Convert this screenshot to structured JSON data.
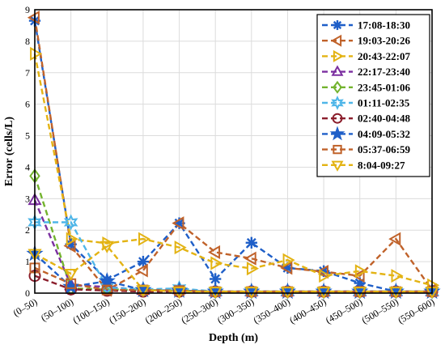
{
  "chart_data": {
    "type": "line",
    "xlabel": "Depth (m)",
    "ylabel": "Error (cells/L)",
    "categories": [
      "(0–50)",
      "(50–100)",
      "(100–150)",
      "(150–200)",
      "(200–250)",
      "(250–300)",
      "(300–350)",
      "(350–400)",
      "(400–450)",
      "(450–500)",
      "(500–550)",
      "(550–600)"
    ],
    "ylim": [
      0,
      9
    ],
    "yticks": [
      0,
      1,
      2,
      3,
      4,
      5,
      6,
      7,
      8,
      9
    ],
    "grid": true,
    "legend_position": "top-right",
    "series": [
      {
        "name": "17:08-18:30",
        "color": "#1f5fc8",
        "marker": "asterisk",
        "values": [
          8.65,
          1.55,
          0.42,
          1.0,
          2.22,
          0.45,
          1.6,
          0.8,
          0.7,
          0.32,
          0.05,
          0.05
        ]
      },
      {
        "name": "19:03-20:26",
        "color": "#c0622a",
        "marker": "tri-left",
        "values": [
          8.75,
          1.5,
          0.1,
          0.72,
          2.22,
          1.3,
          1.1,
          0.8,
          0.68,
          0.55,
          1.72,
          0.1
        ]
      },
      {
        "name": "20:43-22:07",
        "color": "#e3b313",
        "marker": "tri-right",
        "values": [
          7.6,
          1.72,
          1.58,
          1.72,
          1.45,
          0.95,
          0.78,
          1.05,
          0.55,
          0.7,
          0.55,
          0.25
        ]
      },
      {
        "name": "22:17-23:40",
        "color": "#7b2fa0",
        "marker": "tri-up",
        "values": [
          2.95,
          0.25,
          0.2,
          0.1,
          0.12,
          0.05,
          0.05,
          0.05,
          0.05,
          0.05,
          0.05,
          0.05
        ]
      },
      {
        "name": "23:45-01:06",
        "color": "#73b32e",
        "marker": "diamond",
        "values": [
          3.72,
          0.15,
          0.12,
          0.1,
          0.08,
          0.05,
          0.05,
          0.05,
          0.05,
          0.05,
          0.05,
          0.05
        ]
      },
      {
        "name": "01:11-02:35",
        "color": "#4fb6e8",
        "marker": "hexagram",
        "values": [
          2.25,
          2.25,
          0.18,
          0.12,
          0.15,
          0.05,
          0.05,
          0.05,
          0.05,
          0.05,
          0.05,
          0.05
        ]
      },
      {
        "name": "02:40-04:48",
        "color": "#8b1e2c",
        "marker": "circle",
        "values": [
          0.55,
          0.12,
          0.08,
          0.05,
          0.05,
          0.05,
          0.05,
          0.05,
          0.05,
          0.05,
          0.05,
          0.05
        ]
      },
      {
        "name": "04:09-05:32",
        "color": "#1f5fc8",
        "marker": "star",
        "values": [
          1.25,
          0.2,
          0.38,
          0.1,
          0.08,
          0.05,
          0.05,
          0.05,
          0.05,
          0.05,
          0.05,
          0.05
        ]
      },
      {
        "name": "05:37-06:59",
        "color": "#c0622a",
        "marker": "square",
        "values": [
          0.8,
          0.3,
          0.1,
          0.1,
          0.08,
          0.05,
          0.05,
          0.05,
          0.05,
          0.05,
          0.05,
          0.05
        ]
      },
      {
        "name": "8:04-09:27",
        "color": "#e3b313",
        "marker": "tri-down",
        "values": [
          1.25,
          0.62,
          1.5,
          0.1,
          0.05,
          0.05,
          0.05,
          0.05,
          0.05,
          0.05,
          0.05,
          0.05
        ]
      }
    ]
  }
}
